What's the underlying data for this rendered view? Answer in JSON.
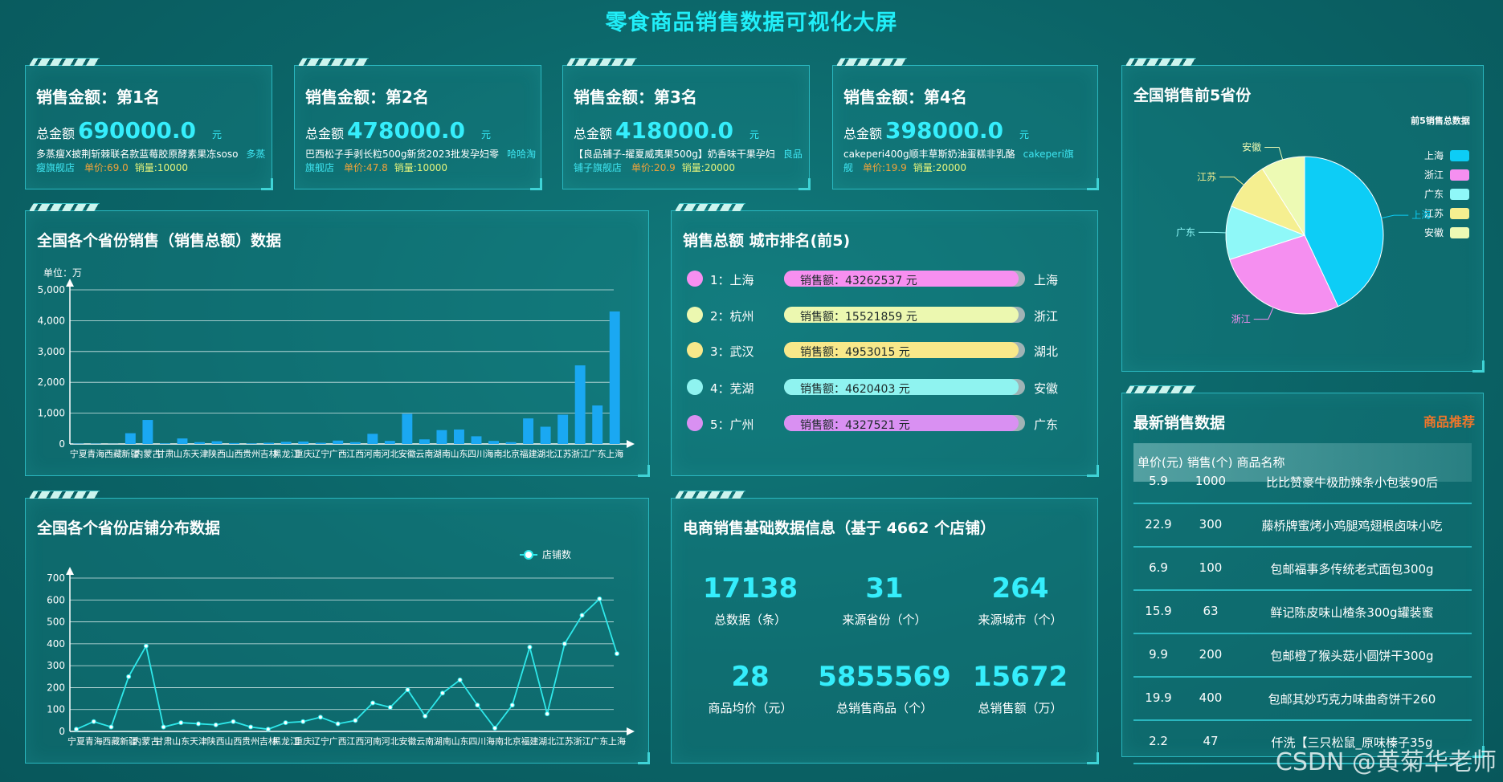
{
  "header": {
    "title": "零食商品销售数据可视化大屏"
  },
  "top_cards": [
    {
      "title": "销售金额：第1名",
      "total_label": "总金额",
      "amount": "690000.0",
      "unit": "元",
      "product": "多蒸瘦X披荆斩棘联名款蓝莓胶原酵素果冻soso",
      "shop": "多蒸瘦旗舰店",
      "price": "单价:69.0",
      "sales": "销量:10000"
    },
    {
      "title": "销售金额：第2名",
      "total_label": "总金额",
      "amount": "478000.0",
      "unit": "元",
      "product": "巴西松子手剥长粒500g新货2023批发孕妇零",
      "shop": "哈哈淘旗舰店",
      "price": "单价:47.8",
      "sales": "销量:10000"
    },
    {
      "title": "销售金额：第3名",
      "total_label": "总金额",
      "amount": "418000.0",
      "unit": "元",
      "product": "【良品铺子-擢夏威夷果500g】奶香味干果孕妇",
      "shop": "良品铺子旗舰店",
      "price": "单价:20.9",
      "sales": "销量:20000"
    },
    {
      "title": "销售金额：第4名",
      "total_label": "总金额",
      "amount": "398000.0",
      "unit": "元",
      "product": "cakeperi400g顺丰草斯奶油蛋糕非乳酪",
      "shop": "cakeperi旗舰",
      "price": "单价:19.9",
      "sales": "销量:20000"
    }
  ],
  "chart_data": [
    {
      "type": "bar",
      "title": "全国各个省份销售（销售总额）数据",
      "unit_label": "单位：万",
      "categories": [
        "宁夏",
        "青海",
        "西藏",
        "新疆",
        "内蒙古",
        "甘肃",
        "山东",
        "天津",
        "陕西",
        "山西",
        "贵州",
        "吉林",
        "黑龙江",
        "重庆",
        "辽宁",
        "广西",
        "江西",
        "河南",
        "河北",
        "安徽",
        "云南",
        "湖南",
        "山东",
        "四川",
        "海南",
        "北京",
        "福建",
        "湖北",
        "江苏",
        "浙江",
        "广东",
        "上海"
      ],
      "values": [
        10,
        10,
        5,
        350,
        780,
        20,
        180,
        60,
        90,
        30,
        20,
        40,
        70,
        80,
        40,
        110,
        60,
        330,
        100,
        980,
        150,
        450,
        470,
        250,
        100,
        60,
        830,
        560,
        950,
        2550,
        1250,
        4300
      ],
      "color": "#1aa8f2",
      "ylim": [
        0,
        5000
      ],
      "yticks": [
        0,
        {
          "value": 1000,
          "label": "1,000"
        },
        {
          "value": 2000,
          "label": "2,000"
        },
        {
          "value": 3000,
          "label": "3,000"
        },
        {
          "value": 4000,
          "label": "4,000"
        },
        {
          "value": 5000,
          "label": "5,000"
        }
      ],
      "grid": true
    },
    {
      "type": "line",
      "title": "全国各个省份店铺分布数据",
      "categories": [
        "宁夏",
        "青海",
        "西藏",
        "新疆",
        "内蒙古",
        "甘肃",
        "山东",
        "天津",
        "陕西",
        "山西",
        "贵州",
        "吉林",
        "黑龙江",
        "重庆",
        "辽宁",
        "广西",
        "江西",
        "河南",
        "河北",
        "安徽",
        "云南",
        "湖南",
        "山东",
        "四川",
        "海南",
        "北京",
        "福建",
        "湖北",
        "江苏",
        "浙江",
        "广东",
        "上海"
      ],
      "series": [
        {
          "name": "店铺数",
          "color": "#2ee8ea",
          "values": [
            10,
            45,
            20,
            250,
            390,
            20,
            40,
            35,
            30,
            45,
            20,
            10,
            40,
            45,
            65,
            35,
            50,
            130,
            110,
            190,
            70,
            175,
            235,
            120,
            15,
            120,
            385,
            80,
            400,
            530,
            605,
            355
          ]
        }
      ],
      "ylim": [
        0,
        700
      ],
      "yticks": [
        0,
        100,
        200,
        300,
        400,
        500,
        600,
        700
      ],
      "grid": true,
      "legend": "top-right"
    },
    {
      "type": "pie",
      "title": "全国销售前5省份",
      "legend_title": "前5销售总数据",
      "categories": [
        "上海",
        "浙江",
        "广东",
        "江苏",
        "安徽"
      ],
      "values": [
        43,
        27,
        11,
        10,
        9
      ],
      "colors": [
        "#0dcdf6",
        "#f58ff0",
        "#8ff8f8",
        "#f5ef90",
        "#edfab4"
      ],
      "legend": "right"
    }
  ],
  "city_ranking": {
    "title": "销售总额 城市排名(前5)",
    "items": [
      {
        "rank": "1：上海",
        "amount": "销售额：43262537 元",
        "province": "上海",
        "color": "#f78ff0"
      },
      {
        "rank": "2：杭州",
        "amount": "销售额：15521859 元",
        "province": "浙江",
        "color": "#ecf8b0"
      },
      {
        "rank": "3：武汉",
        "amount": "销售额：4953015 元",
        "province": "湖北",
        "color": "#f8e88a"
      },
      {
        "rank": "4：芜湖",
        "amount": "销售额：4620403 元",
        "province": "安徽",
        "color": "#8ff3f0"
      },
      {
        "rank": "5：广州",
        "amount": "销售额：4327521 元",
        "province": "广东",
        "color": "#d990f2"
      }
    ]
  },
  "basic_stats": {
    "title": "电商销售基础数据信息（基于 4662 个店铺）",
    "items": [
      {
        "value": "17138",
        "label": "总数据（条）"
      },
      {
        "value": "31",
        "label": "来源省份（个）"
      },
      {
        "value": "264",
        "label": "来源城市（个）"
      },
      {
        "value": "28",
        "label": "商品均价（元）"
      },
      {
        "value": "5855569",
        "label": "总销售商品（个）"
      },
      {
        "value": "15672",
        "label": "总销售额（万）"
      }
    ]
  },
  "latest_sales": {
    "title": "最新销售数据",
    "link": "商品推荐",
    "columns": [
      "单价(元)",
      "销售(个)",
      "商品名称"
    ],
    "rows": [
      [
        "5.9",
        "1000",
        "比比赞豪牛极肋辣条小包装90后"
      ],
      [
        "22.9",
        "300",
        "藤桥牌蜜烤小鸡腿鸡翅根卤味小吃"
      ],
      [
        "6.9",
        "100",
        "包邮福事多传统老式面包300g"
      ],
      [
        "15.9",
        "63",
        "鲜记陈皮味山楂条300g罐装蜜"
      ],
      [
        "9.9",
        "200",
        "包邮橙了猴头菇小圆饼干300g"
      ],
      [
        "19.9",
        "400",
        "包邮其妙巧克力味曲奇饼干260"
      ],
      [
        "2.2",
        "47",
        "仟洗【三只松鼠_原味榛子35g"
      ]
    ]
  },
  "watermark": "CSDN @黄菊华老师"
}
